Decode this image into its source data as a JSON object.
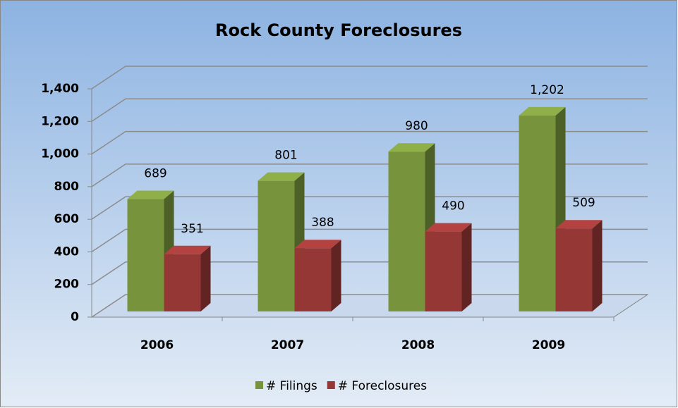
{
  "chart_data": {
    "type": "bar3d",
    "title": "Rock County Foreclosures",
    "categories": [
      "2006",
      "2007",
      "2008",
      "2009"
    ],
    "series": [
      {
        "name": "# Filings",
        "color": "#77933c",
        "values": [
          689,
          801,
          980,
          1202
        ],
        "value_labels": [
          "689",
          "801",
          "980",
          "1,202"
        ]
      },
      {
        "name": "# Foreclosures",
        "color": "#953735",
        "values": [
          351,
          388,
          490,
          509
        ],
        "value_labels": [
          "351",
          "388",
          "490",
          "509"
        ]
      }
    ],
    "ylim": [
      0,
      1400
    ],
    "yticks": [
      0,
      200,
      400,
      600,
      800,
      {
        "value": 1000,
        "label": "1,000"
      },
      {
        "value": 1200,
        "label": "1,200"
      },
      {
        "value": 1400,
        "label": "1,400"
      }
    ],
    "grid": true,
    "legend": "bottom"
  }
}
